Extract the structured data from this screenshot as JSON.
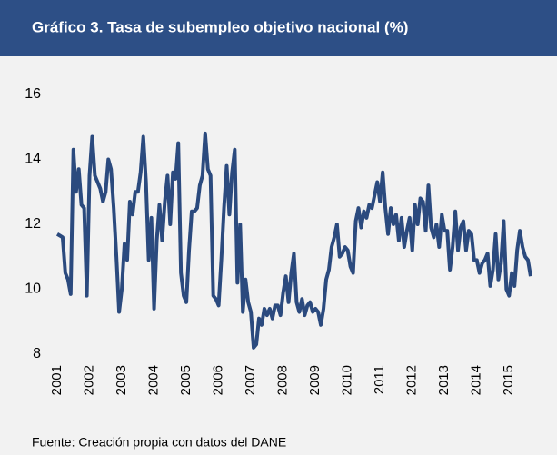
{
  "chart_data": {
    "type": "line",
    "title": "Gráfico 3. Tasa de subempleo objetivo nacional (%)",
    "source": "Fuente: Creación propia con datos del DANE",
    "categories": [
      "2001",
      null,
      null,
      null,
      null,
      null,
      null,
      null,
      null,
      null,
      null,
      null,
      "2002",
      null,
      null,
      null,
      null,
      null,
      null,
      null,
      null,
      null,
      null,
      null,
      "2003",
      null,
      null,
      null,
      null,
      null,
      null,
      null,
      null,
      null,
      null,
      null,
      "2004",
      null,
      null,
      null,
      null,
      null,
      null,
      null,
      null,
      null,
      null,
      null,
      "2005",
      null,
      null,
      null,
      null,
      null,
      null,
      null,
      null,
      null,
      null,
      null,
      "2006",
      null,
      null,
      null,
      null,
      null,
      null,
      null,
      null,
      null,
      null,
      null,
      "2007",
      null,
      null,
      null,
      null,
      null,
      null,
      null,
      null,
      null,
      null,
      null,
      "2008",
      null,
      null,
      null,
      null,
      null,
      null,
      null,
      null,
      null,
      null,
      null,
      "2009",
      null,
      null,
      null,
      null,
      null,
      null,
      null,
      null,
      null,
      null,
      null,
      "2010",
      null,
      null,
      null,
      null,
      null,
      null,
      null,
      null,
      null,
      null,
      null,
      "2011",
      null,
      null,
      null,
      null,
      null,
      null,
      null,
      null,
      null,
      null,
      null,
      "2012",
      null,
      null,
      null,
      null,
      null,
      null,
      null,
      null,
      null,
      null,
      null,
      "2013",
      null,
      null,
      null,
      null,
      null,
      null,
      null,
      null,
      null,
      null,
      null,
      "2014",
      null,
      null,
      null,
      null,
      null,
      null,
      null,
      null,
      null,
      null,
      null,
      "2015",
      null,
      null,
      null,
      null,
      null,
      null,
      null,
      null
    ],
    "series": [
      {
        "name": "Tasa de subempleo objetivo",
        "color": "#2b4a7e",
        "values": [
          11.7,
          11.65,
          11.6,
          10.5,
          10.3,
          9.85,
          14.3,
          13.0,
          13.7,
          12.6,
          12.5,
          9.8,
          13.5,
          14.7,
          13.5,
          13.3,
          13.1,
          12.7,
          13.0,
          14.0,
          13.7,
          12.5,
          11.0,
          9.3,
          10.0,
          11.4,
          10.9,
          12.7,
          12.3,
          13.0,
          13.0,
          13.6,
          14.7,
          13.3,
          10.9,
          12.2,
          9.4,
          11.5,
          12.6,
          11.5,
          12.7,
          13.5,
          12.0,
          13.6,
          13.4,
          14.5,
          10.5,
          9.8,
          9.6,
          11.2,
          12.4,
          12.4,
          12.5,
          13.2,
          13.5,
          14.8,
          13.7,
          13.5,
          9.8,
          9.7,
          9.5,
          10.9,
          12.5,
          13.8,
          12.3,
          13.6,
          14.3,
          10.2,
          12.0,
          9.3,
          10.3,
          9.6,
          9.3,
          8.2,
          8.3,
          9.1,
          8.9,
          9.4,
          9.2,
          9.4,
          9.1,
          9.5,
          9.5,
          9.2,
          9.9,
          10.4,
          9.6,
          10.5,
          11.1,
          9.6,
          9.3,
          9.7,
          9.2,
          9.5,
          9.6,
          9.3,
          9.4,
          9.3,
          8.9,
          9.4,
          10.3,
          10.6,
          11.3,
          11.6,
          12.0,
          11.0,
          11.1,
          11.3,
          11.2,
          10.7,
          10.5,
          12.1,
          12.5,
          11.9,
          12.4,
          12.2,
          12.6,
          12.5,
          12.9,
          13.3,
          12.7,
          13.6,
          12.5,
          11.7,
          12.5,
          12.0,
          12.3,
          11.5,
          12.2,
          11.3,
          11.8,
          12.2,
          11.2,
          12.6,
          12.0,
          12.8,
          12.7,
          11.8,
          13.2,
          11.9,
          11.6,
          12.0,
          11.3,
          12.3,
          11.8,
          11.8,
          10.6,
          11.3,
          12.4,
          11.2,
          11.9,
          12.1,
          11.2,
          11.8,
          11.7,
          10.9,
          10.9,
          10.5,
          10.8,
          10.9,
          11.1,
          10.1,
          10.6,
          11.7,
          10.3,
          10.8,
          12.1,
          10.0,
          9.8,
          10.5,
          10.1,
          11.2,
          11.8,
          11.3,
          11.0,
          10.9,
          10.4
        ]
      }
    ],
    "ylim": [
      8,
      16
    ],
    "yticks": [
      8,
      10,
      12,
      14,
      16
    ],
    "grid": false
  }
}
